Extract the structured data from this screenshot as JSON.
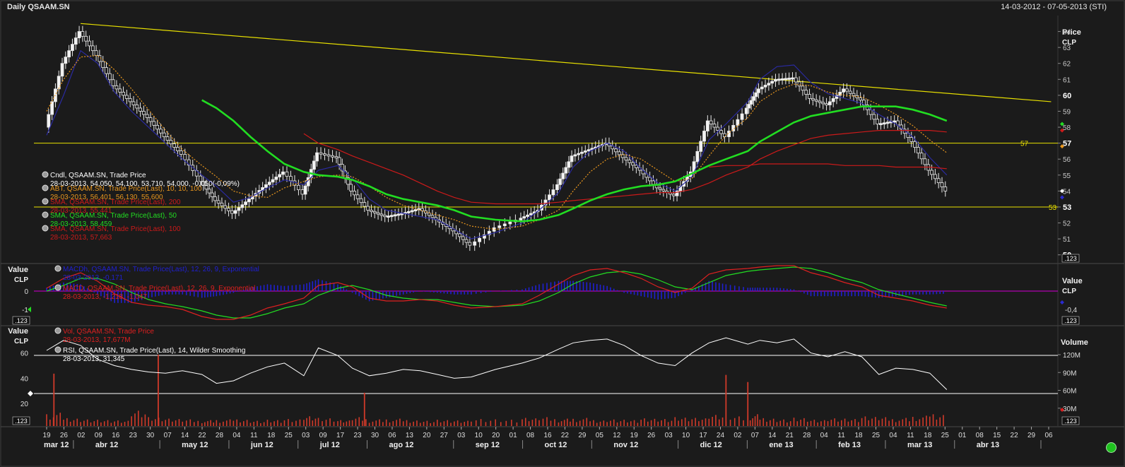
{
  "header": {
    "title": "Daily QSAAM.SN",
    "date_range": "14-03-2012 - 07-05-2013 (STI)"
  },
  "colors": {
    "background": "#1b1b1b",
    "grid": "#3a3a3a",
    "candle": "#e8e8e8",
    "sma20": "#2a2aa0",
    "abt": "#e8961e",
    "sma50": "#22dd22",
    "sma100": "#cc1a1a",
    "trend": "#e8e000",
    "macd_bars": "#2020d0",
    "macd_line": "#dd2020",
    "macd_signal": "#22dd22",
    "zero_line": "#b000b0",
    "volume": "#d03a2a",
    "rsi": "#ffffff"
  },
  "price_panel": {
    "axis_title": [
      "Price",
      "CLP"
    ],
    "ticks": [
      "64",
      "63",
      "62",
      "61",
      "60",
      "59",
      "58",
      "57",
      "56",
      "55",
      "54",
      "53",
      "52",
      "51",
      "50"
    ],
    "bold_ticks": [
      "60",
      "57",
      "53",
      "50"
    ],
    "hlines": [
      57,
      53
    ],
    "hline_labels": [
      "57",
      "53"
    ],
    "trendline": {
      "from": [
        "02-04-2012",
        64.5
      ],
      "to": [
        "07-05-2013",
        59.6
      ]
    },
    "legend": [
      {
        "icon": "circle-icon",
        "name": "Cndl, QSAAM.SN, Trade Price",
        "values": "28-03-2013, 54,050, 54,100, 53,710, 54,000, -0,050(-0,09%)",
        "color": "#ffffff"
      },
      {
        "icon": "circle-icon",
        "name": "ABT, QSAAM.SN, Trade Price(Last), 10, 10, 100",
        "values": "28-03-2013, 56,401, 56,130, 55,600",
        "color": "#e8961e"
      },
      {
        "icon": "circle-icon",
        "name": "SMA, QSAAM.SN, Trade Price(Last), 200",
        "values": "28-03-2013, 55,441",
        "color": "#cc1a1a"
      },
      {
        "icon": "circle-icon",
        "name": "SMA, QSAAM.SN, Trade Price(Last), 50",
        "values": "28-03-2013, 58,459",
        "color": "#22dd22"
      },
      {
        "icon": "circle-icon",
        "name": "SMA, QSAAM.SN, Trade Price(Last), 100",
        "values": "28-03-2013, 57,663",
        "color": "#cc1a1a"
      }
    ],
    "scale_button": ".123"
  },
  "macd_panel": {
    "axis_title": [
      "Value",
      "CLP"
    ],
    "right_title": [
      "Value",
      "CLP"
    ],
    "left_ticks": [
      "0",
      "-1"
    ],
    "right_tick": "-0,4",
    "legend": [
      {
        "icon": "circle-icon",
        "name": "MACDh, QSAAM.SN, Trade Price(Last), 12, 26, 9, Exponential",
        "values": "28-03-2013, -0,171",
        "color": "#2020d0"
      },
      {
        "icon": "circle-icon",
        "name": "MACD, QSAAM.SN, Trade Price(Last), 12, 26, 9, Exponential",
        "values": "28-03-2013, -1,218, -1,047",
        "color": "#dd2020"
      }
    ],
    "scale_button": ".123"
  },
  "rsi_panel": {
    "axis_title": [
      "Value",
      "CLP"
    ],
    "right_title": "Volume",
    "left_ticks": [
      "60",
      "40",
      "20"
    ],
    "right_ticks": [
      "120M",
      "90M",
      "60M",
      "30M"
    ],
    "legend": [
      {
        "icon": "circle-icon",
        "name": "Vol, QSAAM.SN, Trade Price",
        "values": "28-03-2013, 17,677M",
        "color": "#dd2020"
      },
      {
        "icon": "circle-icon",
        "name": "RSI, QSAAM.SN, Trade Price(Last), 14, Wilder Smoothing",
        "values": "28-03-2013, 31,345",
        "color": "#ffffff"
      }
    ],
    "scale_button": ".123"
  },
  "x_axis": {
    "day_ticks": [
      "19",
      "26",
      "02",
      "09",
      "16",
      "23",
      "30",
      "07",
      "14",
      "22",
      "28",
      "04",
      "11",
      "18",
      "25",
      "03",
      "09",
      "17",
      "23",
      "30",
      "06",
      "13",
      "20",
      "27",
      "03",
      "10",
      "20",
      "01",
      "08",
      "16",
      "22",
      "29",
      "05",
      "12",
      "19",
      "26",
      "03",
      "10",
      "17",
      "24",
      "02",
      "07",
      "14",
      "21",
      "28",
      "04",
      "11",
      "18",
      "25",
      "04",
      "11",
      "18",
      "25",
      "01",
      "08",
      "15",
      "22",
      "29",
      "06"
    ],
    "month_labels": [
      "mar 12",
      "abr 12",
      "may 12",
      "jun 12",
      "jul 12",
      "ago 12",
      "sep 12",
      "oct 12",
      "nov 12",
      "dic 12",
      "ene 13",
      "feb 13",
      "mar 13",
      "abr 13"
    ]
  },
  "chart_data": {
    "type": "candlestick",
    "ticker": "QSAAM.SN",
    "period": "14-03-2012 - 07-05-2013",
    "unit": "CLP",
    "price_ylim": [
      49.5,
      65
    ],
    "date_ticks": [
      "19-03-2012",
      "26-03-2012",
      "02-04-2012",
      "09-04-2012",
      "16-04-2012",
      "23-04-2012",
      "30-04-2012",
      "07-05-2012",
      "14-05-2012",
      "22-05-2012",
      "28-05-2012",
      "04-06-2012",
      "11-06-2012",
      "18-06-2012",
      "25-06-2012",
      "03-07-2012",
      "09-07-2012",
      "17-07-2012",
      "23-07-2012",
      "30-07-2012",
      "06-08-2012",
      "13-08-2012",
      "20-08-2012",
      "27-08-2012",
      "03-09-2012",
      "10-09-2012",
      "20-09-2012",
      "01-10-2012",
      "08-10-2012",
      "16-10-2012",
      "22-10-2012",
      "29-10-2012",
      "05-11-2012",
      "12-11-2012",
      "19-11-2012",
      "26-11-2012",
      "03-12-2012",
      "10-12-2012",
      "17-12-2012",
      "24-12-2012",
      "02-01-2013",
      "07-01-2013",
      "14-01-2013",
      "21-01-2013",
      "28-01-2013",
      "04-02-2013",
      "11-02-2013",
      "18-02-2013",
      "25-02-2013",
      "04-03-2013",
      "11-03-2013",
      "18-03-2013",
      "25-03-2013",
      "01-04-2013",
      "08-04-2013",
      "15-04-2013",
      "22-04-2013",
      "29-04-2013",
      "06-05-2013"
    ],
    "weekly_close": [
      58.0,
      62.0,
      64.0,
      62.5,
      60.6,
      59.6,
      58.6,
      57.4,
      56.3,
      54.6,
      53.4,
      52.6,
      53.5,
      54.4,
      55.2,
      53.8,
      56.4,
      56.1,
      54.0,
      52.8,
      52.4,
      52.6,
      52.9,
      52.2,
      51.5,
      50.6,
      51.7,
      52.3,
      52.8,
      54.4,
      56.2,
      56.6,
      57.0,
      56.1,
      55.3,
      54.2,
      53.7,
      55.2,
      58.4,
      57.4,
      59.2,
      60.4,
      61.0,
      61.1,
      59.8,
      59.4,
      60.4,
      59.7,
      58.2,
      58.4,
      57.1,
      55.3,
      54.0
    ],
    "sma20_weekly": [
      57.5,
      60.0,
      62.8,
      62.0,
      60.2,
      59.0,
      58.0,
      57.0,
      56.0,
      55.0,
      54.3,
      53.3,
      53.6,
      54.2,
      54.7,
      54.4,
      55.3,
      55.6,
      54.8,
      53.5,
      52.8,
      52.6,
      52.4,
      52.2,
      51.6,
      51.0,
      51.4,
      52.0,
      52.8,
      53.9,
      55.5,
      56.5,
      57.0,
      56.5,
      55.4,
      54.5,
      54.0,
      54.9,
      57.2,
      58.2,
      59.6,
      61.0,
      61.8,
      61.9,
      60.8,
      60.1,
      59.8,
      59.5,
      58.8,
      58.2,
      57.4,
      56.1,
      55.0
    ],
    "abt_weekly": [
      59.0,
      61.0,
      62.4,
      62.5,
      61.6,
      60.4,
      59.1,
      57.8,
      56.6,
      55.6,
      54.9,
      54.0,
      53.7,
      53.6,
      54.2,
      54.6,
      54.9,
      55.0,
      54.9,
      54.3,
      53.6,
      53.1,
      52.8,
      52.5,
      52.2,
      51.8,
      51.6,
      51.8,
      52.2,
      52.8,
      54.0,
      55.2,
      56.0,
      56.3,
      56.0,
      55.3,
      54.6,
      54.8,
      56.2,
      57.5,
      58.6,
      59.6,
      60.3,
      60.7,
      60.6,
      60.2,
      60.0,
      59.9,
      59.4,
      58.8,
      58.1,
      57.2,
      56.4
    ],
    "sma50_weekly": [
      null,
      null,
      null,
      null,
      null,
      null,
      null,
      null,
      null,
      59.7,
      59.2,
      58.4,
      57.4,
      56.5,
      55.7,
      55.2,
      55.0,
      54.9,
      54.7,
      54.3,
      53.8,
      53.5,
      53.3,
      53.1,
      52.8,
      52.4,
      52.2,
      52.1,
      52.2,
      52.5,
      52.9,
      53.4,
      53.8,
      54.1,
      54.3,
      54.4,
      54.6,
      55.1,
      55.6,
      56.0,
      56.5,
      57.1,
      57.7,
      58.3,
      58.7,
      58.9,
      59.1,
      59.3,
      59.3,
      59.3,
      59.1,
      58.8,
      58.4
    ],
    "sma100_weekly": [
      null,
      null,
      null,
      null,
      null,
      null,
      null,
      null,
      null,
      null,
      null,
      null,
      null,
      null,
      null,
      57.6,
      57.0,
      56.6,
      56.2,
      55.8,
      55.4,
      55.0,
      54.5,
      54.0,
      53.6,
      53.3,
      53.2,
      53.2,
      53.2,
      53.3,
      53.4,
      53.5,
      53.6,
      53.7,
      53.8,
      53.9,
      53.9,
      54.1,
      54.5,
      55.0,
      55.5,
      56.0,
      56.5,
      56.9,
      57.3,
      57.5,
      57.6,
      57.7,
      57.8,
      57.8,
      57.8,
      57.8,
      57.7
    ],
    "sma200_weekly": [
      null,
      null,
      null,
      null,
      null,
      null,
      null,
      null,
      null,
      null,
      null,
      null,
      null,
      null,
      null,
      null,
      null,
      null,
      null,
      null,
      null,
      null,
      null,
      null,
      null,
      null,
      null,
      null,
      null,
      null,
      null,
      null,
      null,
      null,
      null,
      null,
      null,
      null,
      55.5,
      55.6,
      55.6,
      55.7,
      55.7,
      55.7,
      55.7,
      55.7,
      55.6,
      55.6,
      55.6,
      55.5,
      55.5,
      55.5,
      55.4
    ],
    "macd_weekly": [
      0.2,
      0.9,
      1.3,
      0.7,
      -0.2,
      -0.8,
      -1.0,
      -1.1,
      -1.3,
      -1.8,
      -2.0,
      -2.0,
      -1.7,
      -1.2,
      -0.9,
      -0.5,
      0.4,
      0.6,
      0.3,
      -0.5,
      -0.7,
      -0.7,
      -0.6,
      -0.7,
      -1.0,
      -1.2,
      -1.1,
      -0.9,
      -0.3,
      0.5,
      1.1,
      1.5,
      1.6,
      1.3,
      0.9,
      0.3,
      -0.1,
      0.2,
      1.2,
      1.5,
      1.6,
      1.7,
      1.8,
      1.8,
      1.3,
      1.0,
      0.6,
      0.3,
      -0.3,
      -0.5,
      -0.7,
      -1.0,
      -1.2
    ],
    "macd_signal_weekly": [
      0.0,
      0.4,
      0.9,
      0.9,
      0.5,
      -0.1,
      -0.6,
      -0.9,
      -1.1,
      -1.4,
      -1.7,
      -1.9,
      -1.9,
      -1.6,
      -1.2,
      -0.9,
      -0.3,
      0.2,
      0.4,
      0.1,
      -0.3,
      -0.5,
      -0.6,
      -0.6,
      -0.8,
      -1.0,
      -1.1,
      -1.0,
      -0.7,
      -0.1,
      0.5,
      1.0,
      1.3,
      1.4,
      1.2,
      0.8,
      0.3,
      0.1,
      0.6,
      1.1,
      1.4,
      1.5,
      1.6,
      1.7,
      1.6,
      1.3,
      0.9,
      0.6,
      0.1,
      -0.2,
      -0.5,
      -0.8,
      -1.05
    ],
    "rsi_weekly": [
      62,
      70,
      66,
      55,
      50,
      47,
      45,
      44,
      46,
      43,
      36,
      38,
      44,
      49,
      52,
      42,
      64,
      58,
      48,
      42,
      44,
      47,
      46,
      43,
      40,
      41,
      47,
      52,
      56,
      63,
      68,
      70,
      71,
      66,
      58,
      52,
      50,
      60,
      68,
      72,
      67,
      70,
      68,
      71,
      60,
      57,
      61,
      57,
      43,
      48,
      47,
      44,
      31
    ],
    "volume_weekly_M": [
      8,
      18,
      12,
      10,
      9,
      8,
      22,
      12,
      10,
      9,
      8,
      9,
      10,
      8,
      9,
      10,
      14,
      11,
      8,
      12,
      9,
      10,
      9,
      8,
      9,
      8,
      10,
      9,
      11,
      12,
      10,
      11,
      9,
      10,
      9,
      11,
      10,
      12,
      11,
      15,
      13,
      16,
      12,
      10,
      12,
      9,
      11,
      10,
      13,
      12,
      11,
      14,
      18
    ],
    "volume_spikes": [
      {
        "date": "22-03-2012",
        "value_M": 88
      },
      {
        "date": "04-05-2012",
        "value_M": 120
      },
      {
        "date": "28-07-2012",
        "value_M": 56
      },
      {
        "date": "24-12-2012",
        "value_M": 86
      },
      {
        "date": "02-01-2013",
        "value_M": 74
      }
    ]
  }
}
